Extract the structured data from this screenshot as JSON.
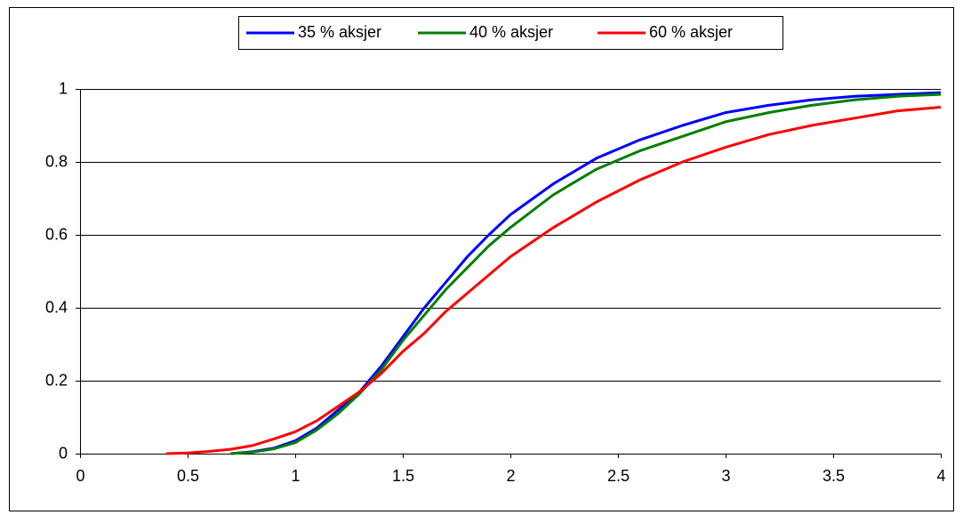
{
  "chart_data": {
    "type": "line",
    "x": [
      0.4,
      0.5,
      0.6,
      0.7,
      0.8,
      0.9,
      1.0,
      1.1,
      1.2,
      1.3,
      1.4,
      1.5,
      1.6,
      1.7,
      1.8,
      1.9,
      2.0,
      2.2,
      2.4,
      2.6,
      2.8,
      3.0,
      3.2,
      3.4,
      3.6,
      3.8,
      4.0
    ],
    "series": [
      {
        "name": "35 % aksjer",
        "color": "#0000ff",
        "values": [
          null,
          null,
          null,
          0,
          0.005,
          0.015,
          0.035,
          0.07,
          0.12,
          0.17,
          0.24,
          0.32,
          0.4,
          0.47,
          0.54,
          0.6,
          0.655,
          0.74,
          0.81,
          0.86,
          0.9,
          0.935,
          0.955,
          0.97,
          0.98,
          0.985,
          0.99
        ]
      },
      {
        "name": "40 % aksjer",
        "color": "#008000",
        "values": [
          null,
          null,
          null,
          0,
          0.004,
          0.013,
          0.03,
          0.065,
          0.11,
          0.165,
          0.23,
          0.31,
          0.38,
          0.45,
          0.51,
          0.57,
          0.62,
          0.71,
          0.78,
          0.83,
          0.87,
          0.91,
          0.935,
          0.955,
          0.97,
          0.98,
          0.985
        ]
      },
      {
        "name": "60 % aksjer",
        "color": "#ff0000",
        "values": [
          0,
          0.002,
          0.006,
          0.012,
          0.022,
          0.04,
          0.06,
          0.09,
          0.13,
          0.17,
          0.22,
          0.28,
          0.33,
          0.39,
          0.44,
          0.49,
          0.54,
          0.62,
          0.69,
          0.75,
          0.8,
          0.84,
          0.875,
          0.9,
          0.92,
          0.94,
          0.95
        ]
      }
    ],
    "xlim": [
      0,
      4
    ],
    "xticks": [
      0,
      0.5,
      1,
      1.5,
      2,
      2.5,
      3,
      3.5,
      4
    ],
    "ylim": [
      0,
      1
    ],
    "yticks": [
      0,
      0.2,
      0.4,
      0.6,
      0.8,
      1
    ],
    "grid": true,
    "legend": "top"
  }
}
